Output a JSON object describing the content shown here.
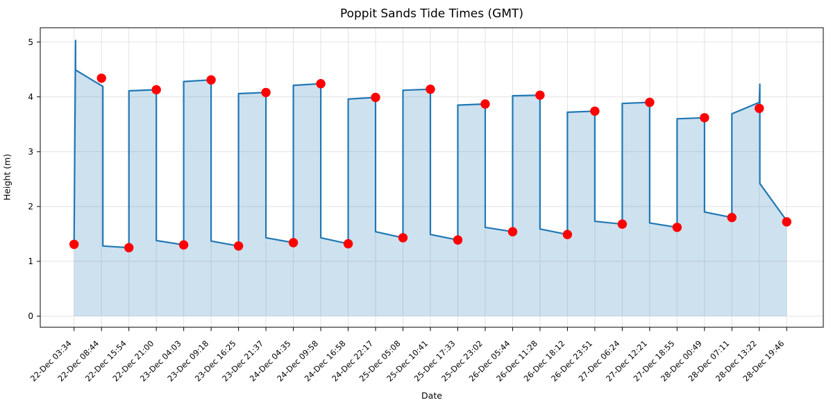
{
  "figure": {
    "title": "Poppit Sands Tide Times (GMT)",
    "xlabel": "Date",
    "ylabel": "Height (m)"
  },
  "chart_data": {
    "type": "line",
    "title": "Poppit Sands Tide Times (GMT)",
    "xlabel": "Date",
    "ylabel": "Height (m)",
    "grid": true,
    "legend": false,
    "ylim": [
      -0.2,
      5.26
    ],
    "yticks": [
      0,
      1,
      2,
      3,
      4,
      5
    ],
    "events": [
      {
        "label": "22-Dec 03:34",
        "height": 1.31,
        "tide": "low"
      },
      {
        "label": "22-Dec 08:44",
        "height": 4.34,
        "tide": "high"
      },
      {
        "label": "22-Dec 15:54",
        "height": 1.25,
        "tide": "low"
      },
      {
        "label": "22-Dec 21:00",
        "height": 4.13,
        "tide": "high"
      },
      {
        "label": "23-Dec 04:03",
        "height": 1.3,
        "tide": "low"
      },
      {
        "label": "23-Dec 09:18",
        "height": 4.31,
        "tide": "high"
      },
      {
        "label": "23-Dec 16:25",
        "height": 1.28,
        "tide": "low"
      },
      {
        "label": "23-Dec 21:37",
        "height": 4.08,
        "tide": "high"
      },
      {
        "label": "24-Dec 04:35",
        "height": 1.34,
        "tide": "low"
      },
      {
        "label": "24-Dec 09:58",
        "height": 4.24,
        "tide": "high"
      },
      {
        "label": "24-Dec 16:58",
        "height": 1.32,
        "tide": "low"
      },
      {
        "label": "24-Dec 22:17",
        "height": 3.99,
        "tide": "high"
      },
      {
        "label": "25-Dec 05:08",
        "height": 1.43,
        "tide": "low"
      },
      {
        "label": "25-Dec 10:41",
        "height": 4.14,
        "tide": "high"
      },
      {
        "label": "25-Dec 17:33",
        "height": 1.39,
        "tide": "low"
      },
      {
        "label": "25-Dec 23:02",
        "height": 3.87,
        "tide": "high"
      },
      {
        "label": "26-Dec 05:44",
        "height": 1.54,
        "tide": "low"
      },
      {
        "label": "26-Dec 11:28",
        "height": 4.03,
        "tide": "high"
      },
      {
        "label": "26-Dec 18:12",
        "height": 1.49,
        "tide": "low"
      },
      {
        "label": "26-Dec 23:51",
        "height": 3.74,
        "tide": "high"
      },
      {
        "label": "27-Dec 06:24",
        "height": 1.68,
        "tide": "low"
      },
      {
        "label": "27-Dec 12:21",
        "height": 3.9,
        "tide": "high"
      },
      {
        "label": "27-Dec 18:55",
        "height": 1.62,
        "tide": "low"
      },
      {
        "label": "28-Dec 00:49",
        "height": 3.62,
        "tide": "high"
      },
      {
        "label": "28-Dec 07:11",
        "height": 1.8,
        "tide": "low"
      },
      {
        "label": "28-Dec 13:22",
        "height": 3.79,
        "tide": "high"
      },
      {
        "label": "28-Dec 19:46",
        "height": 1.72,
        "tide": "low"
      }
    ],
    "line_vertices": [
      [
        1,
        1.31
      ],
      [
        1.055,
        5.03
      ],
      [
        1.055,
        4.49
      ],
      [
        2.05,
        4.19
      ],
      [
        2.05,
        1.28
      ],
      [
        3,
        1.25
      ],
      [
        3,
        4.11
      ],
      [
        4,
        4.13
      ],
      [
        4,
        1.38
      ],
      [
        5,
        1.3
      ],
      [
        5,
        4.28
      ],
      [
        6,
        4.31
      ],
      [
        6,
        1.37
      ],
      [
        7,
        1.28
      ],
      [
        7,
        4.06
      ],
      [
        8,
        4.08
      ],
      [
        8,
        1.43
      ],
      [
        9,
        1.34
      ],
      [
        9,
        4.21
      ],
      [
        10,
        4.24
      ],
      [
        10,
        1.43
      ],
      [
        11,
        1.32
      ],
      [
        11,
        3.96
      ],
      [
        12,
        3.99
      ],
      [
        12,
        1.54
      ],
      [
        13,
        1.43
      ],
      [
        13,
        4.12
      ],
      [
        14,
        4.14
      ],
      [
        14,
        1.49
      ],
      [
        15,
        1.39
      ],
      [
        15,
        3.85
      ],
      [
        16,
        3.87
      ],
      [
        16,
        1.62
      ],
      [
        17,
        1.54
      ],
      [
        17,
        4.02
      ],
      [
        18,
        4.03
      ],
      [
        18,
        1.59
      ],
      [
        19,
        1.49
      ],
      [
        19,
        3.72
      ],
      [
        20,
        3.74
      ],
      [
        20,
        1.73
      ],
      [
        21,
        1.68
      ],
      [
        21,
        3.88
      ],
      [
        22,
        3.9
      ],
      [
        22,
        1.7
      ],
      [
        23,
        1.62
      ],
      [
        23,
        3.6
      ],
      [
        24,
        3.62
      ],
      [
        24,
        1.9
      ],
      [
        25,
        1.8
      ],
      [
        25,
        3.69
      ],
      [
        26,
        3.9
      ],
      [
        26.02,
        4.23
      ],
      [
        26.02,
        2.42
      ],
      [
        27,
        1.74
      ]
    ],
    "fill_baseline": 0,
    "colors": {
      "line": "#1f77b4",
      "fill": "rgba(31,119,180,0.22)",
      "marker": "#ff0000",
      "grid": "#e2e2e2",
      "spine": "#000000",
      "text": "#000000"
    }
  }
}
